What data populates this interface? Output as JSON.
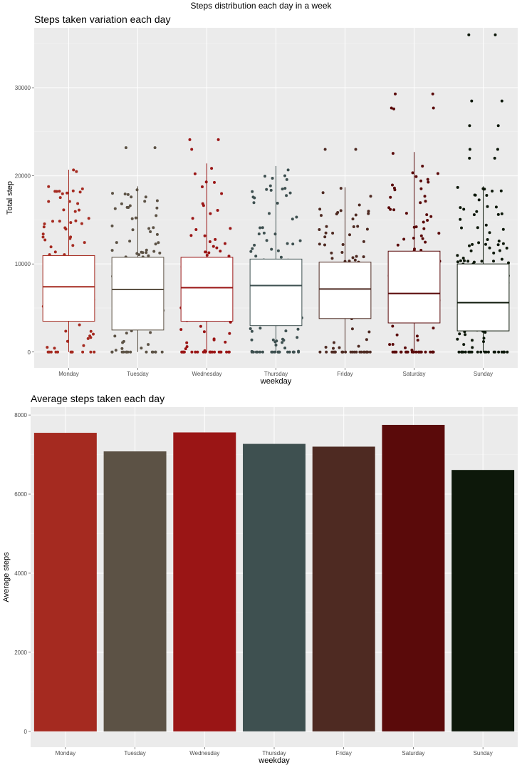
{
  "page_title": "Steps distribution each day in a week",
  "chart_data": [
    {
      "type": "box",
      "title": "Steps taken variation each day",
      "xlabel": "weekday",
      "ylabel": "Total step",
      "ylim": [
        -1800,
        36800
      ],
      "yticks": [
        0,
        10000,
        20000,
        30000
      ],
      "grid": true,
      "categories": [
        "Monday",
        "Tuesday",
        "Wednesday",
        "Thursday",
        "Friday",
        "Saturday",
        "Sunday"
      ],
      "colors": [
        "#a52a20",
        "#5c5245",
        "#9a1515",
        "#3e5050",
        "#4e2a22",
        "#5a0a0a",
        "#0d180a"
      ],
      "boxes": [
        {
          "q1": 3500,
          "median": 7400,
          "q3": 10950,
          "whisker_low": 0,
          "whisker_high": 20700
        },
        {
          "q1": 2500,
          "median": 7100,
          "q3": 10750,
          "whisker_low": 0,
          "whisker_high": 18800
        },
        {
          "q1": 3500,
          "median": 7300,
          "q3": 10750,
          "whisker_low": 0,
          "whisker_high": 21400
        },
        {
          "q1": 3000,
          "median": 7550,
          "q3": 10550,
          "whisker_low": 0,
          "whisker_high": 21100
        },
        {
          "q1": 3800,
          "median": 7150,
          "q3": 10200,
          "whisker_low": 0,
          "whisker_high": 18700
        },
        {
          "q1": 3300,
          "median": 6650,
          "q3": 11450,
          "whisker_low": 0,
          "whisker_high": 22700
        },
        {
          "q1": 2400,
          "median": 5600,
          "q3": 10000,
          "whisker_low": 0,
          "whisker_high": 18800
        }
      ],
      "outliers": [
        [],
        [
          23200,
          23200
        ],
        [
          24100,
          24100,
          23000
        ],
        [],
        [
          23000,
          23000
        ],
        [
          29300,
          29300,
          27700,
          27700,
          27600
        ],
        [
          36000,
          36000,
          28500,
          28500,
          25700,
          25700,
          23000,
          23000,
          22000,
          22000
        ]
      ],
      "points_per_day": [
        120,
        125,
        120,
        125,
        120,
        130,
        130
      ]
    },
    {
      "type": "bar",
      "title": "Average steps taken each day",
      "xlabel": "weekday",
      "ylabel": "Average steps",
      "ylim": [
        -400,
        8200
      ],
      "yticks": [
        0,
        2000,
        4000,
        6000,
        8000
      ],
      "grid": true,
      "categories": [
        "Monday",
        "Tuesday",
        "Wednesday",
        "Thursday",
        "Friday",
        "Saturday",
        "Sunday"
      ],
      "values": [
        7550,
        7080,
        7560,
        7270,
        7200,
        7750,
        6610
      ],
      "colors": [
        "#a52a20",
        "#5c5245",
        "#9a1515",
        "#3e5050",
        "#4e2a22",
        "#5a0a0a",
        "#0d180a"
      ]
    }
  ]
}
